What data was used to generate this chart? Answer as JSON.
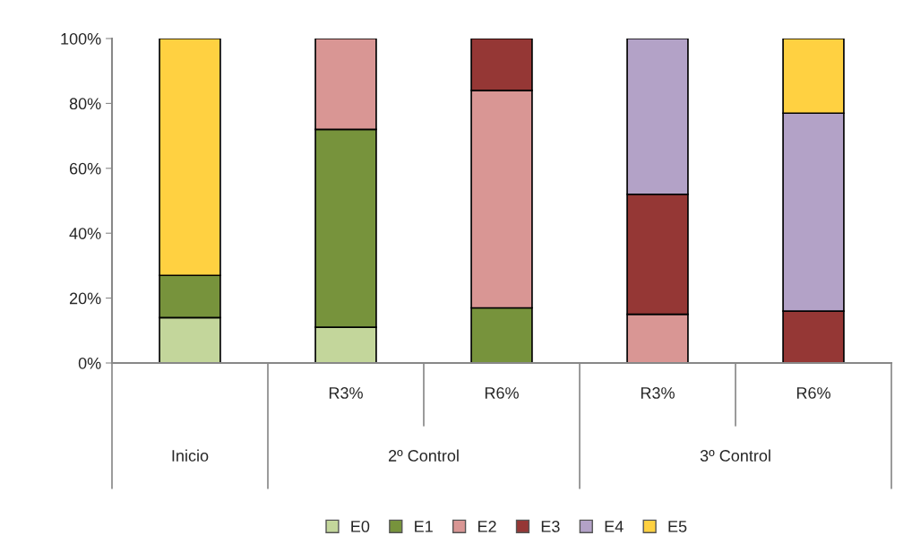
{
  "chart_data": {
    "type": "bar",
    "stacked": true,
    "categories": [
      null,
      "R3%",
      "R6%",
      "R3%",
      "R6%"
    ],
    "series": [
      {
        "name": "E0",
        "color": "#c3d69b",
        "values": [
          14,
          11,
          null,
          null,
          null
        ]
      },
      {
        "name": "E1",
        "color": "#77933c",
        "values": [
          13,
          61,
          17,
          null,
          null
        ]
      },
      {
        "name": "E2",
        "color": "#d99694",
        "values": [
          null,
          28,
          67,
          15,
          null
        ]
      },
      {
        "name": "E3",
        "color": "#953735",
        "values": [
          null,
          null,
          16,
          37,
          16
        ]
      },
      {
        "name": "E4",
        "color": "#b3a2c7",
        "values": [
          null,
          null,
          null,
          48,
          61
        ]
      },
      {
        "name": "E5",
        "color": "#ffd141",
        "values": [
          73,
          null,
          null,
          null,
          23
        ]
      }
    ],
    "annotations": [
      "Inicio",
      "2º Control",
      "3º Control"
    ],
    "ylim": [
      0,
      100
    ],
    "yticks": [
      {
        "value": 0,
        "label": "0%"
      },
      {
        "value": 20,
        "label": "20%"
      },
      {
        "value": 40,
        "label": "40%"
      },
      {
        "value": 60,
        "label": "60%"
      },
      {
        "value": 80,
        "label": "80%"
      },
      {
        "value": 100,
        "label": "100%"
      }
    ],
    "grid": false,
    "legend": "bottom"
  }
}
